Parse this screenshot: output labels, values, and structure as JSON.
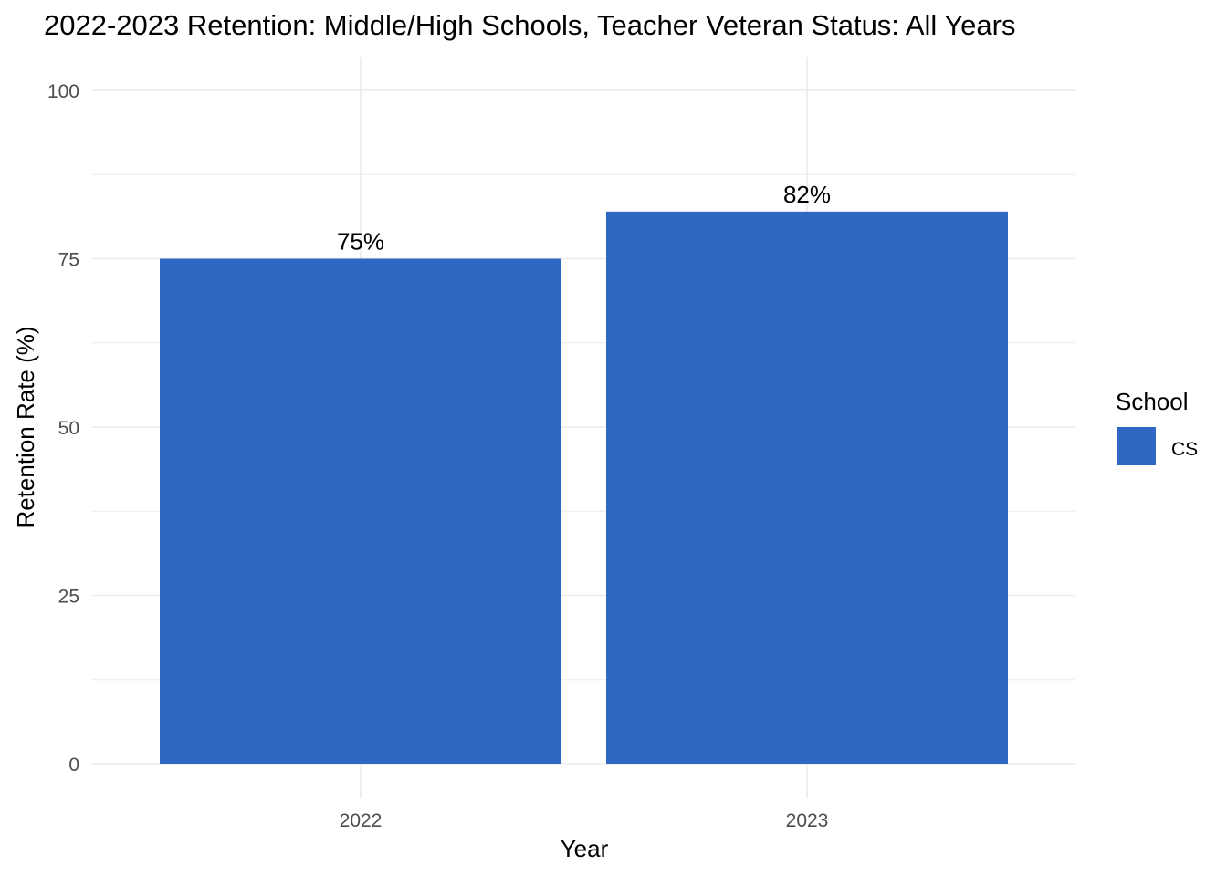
{
  "chart_data": {
    "type": "bar",
    "title": "2022-2023 Retention: Middle/High Schools, Teacher Veteran Status: All Years",
    "xlabel": "Year",
    "ylabel": "Retention Rate (%)",
    "categories": [
      "2022",
      "2023"
    ],
    "series": [
      {
        "name": "CS",
        "values": [
          75,
          82
        ],
        "labels": [
          "75%",
          "82%"
        ],
        "color": "#2E68C3"
      }
    ],
    "ylim": [
      0,
      100
    ],
    "yticks": [
      0,
      25,
      50,
      75,
      100
    ],
    "grid": true,
    "legend": {
      "title": "School",
      "placement": "right",
      "entries": [
        "CS"
      ]
    },
    "colors": {
      "bar": "#2E68C3",
      "grid": "#EBEBEB",
      "tick_label": "#4D4D4D",
      "text": "#000000"
    }
  }
}
